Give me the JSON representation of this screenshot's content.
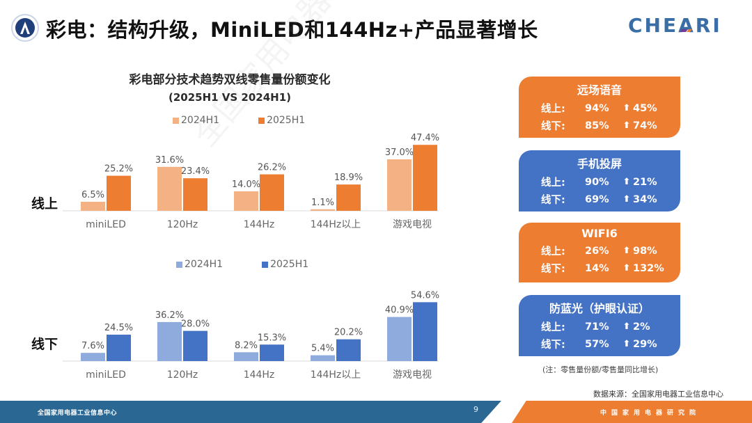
{
  "header": {
    "title": "彩电：结构升级，MiniLED和144Hz+产品显著增长",
    "brand": "CHEARI",
    "emblem": "organization-emblem"
  },
  "colors": {
    "orange_light": "#f4b183",
    "orange_dark": "#ed7d31",
    "blue_light": "#8faadc",
    "blue_dark": "#4472c4",
    "footer_blue": "#2a6793",
    "footer_orange": "#ed7d31"
  },
  "chart_data": [
    {
      "type": "bar",
      "title": "彩电部分技术趋势双线零售量份额变化",
      "subtitle": "(2025H1 VS 2024H1)",
      "row_label": "线上",
      "categories": [
        "miniLED",
        "120Hz",
        "144Hz",
        "144Hz以上",
        "游戏电视"
      ],
      "series": [
        {
          "name": "2024H1",
          "values": [
            6.5,
            31.6,
            14.0,
            1.1,
            37.0
          ],
          "labels": [
            "6.5%",
            "31.6%",
            "14.0%",
            "1.1%",
            "37.0%"
          ]
        },
        {
          "name": "2025H1",
          "values": [
            25.2,
            23.4,
            26.2,
            18.9,
            47.4
          ],
          "labels": [
            "25.2%",
            "23.4%",
            "26.2%",
            "18.9%",
            "47.4%"
          ]
        }
      ],
      "xlabel": "",
      "ylabel": "",
      "ylim": [
        0,
        60
      ],
      "grid": false,
      "legend": "top-center"
    },
    {
      "type": "bar",
      "row_label": "线下",
      "categories": [
        "miniLED",
        "120Hz",
        "144Hz",
        "144Hz以上",
        "游戏电视"
      ],
      "series": [
        {
          "name": "2024H1",
          "values": [
            7.6,
            36.2,
            8.2,
            5.4,
            40.9
          ],
          "labels": [
            "7.6%",
            "36.2%",
            "8.2%",
            "5.4%",
            "40.9%"
          ]
        },
        {
          "name": "2025H1",
          "values": [
            24.5,
            28.0,
            15.3,
            20.2,
            54.6
          ],
          "labels": [
            "24.5%",
            "28.0%",
            "15.3%",
            "20.2%",
            "54.6%"
          ]
        }
      ],
      "xlabel": "",
      "ylabel": "",
      "ylim": [
        0,
        60
      ],
      "grid": false,
      "legend": "top-center"
    }
  ],
  "cards": [
    {
      "title": "远场语音",
      "theme": "orange",
      "rows": [
        {
          "label": "线上:",
          "share": "94%",
          "arrow": "up-arrow",
          "growth": "45%"
        },
        {
          "label": "线下:",
          "share": "85%",
          "arrow": "up-arrow",
          "growth": "74%"
        }
      ]
    },
    {
      "title": "手机投屏",
      "theme": "blue",
      "rows": [
        {
          "label": "线上:",
          "share": "90%",
          "arrow": "up-arrow",
          "growth": "21%"
        },
        {
          "label": "线下:",
          "share": "69%",
          "arrow": "up-arrow",
          "growth": "34%"
        }
      ]
    },
    {
      "title": "WIFI6",
      "theme": "orange",
      "rows": [
        {
          "label": "线上:",
          "share": "26%",
          "arrow": "up-arrow",
          "growth": "98%"
        },
        {
          "label": "线下:",
          "share": "14%",
          "arrow": "up-arrow",
          "growth": "132%"
        }
      ]
    },
    {
      "title": "防蓝光（护眼认证）",
      "theme": "blue",
      "rows": [
        {
          "label": "线上:",
          "share": "71%",
          "arrow": "up-arrow",
          "growth": "2%"
        },
        {
          "label": "线下:",
          "share": "57%",
          "arrow": "up-arrow",
          "growth": "29%"
        }
      ]
    }
  ],
  "note": "(注：零售量份额/零售量同比增长)",
  "source": "数据来源：全国家用电器工业信息中心",
  "footer": {
    "left_text": "全国家用电器工业信息中心",
    "page_number": "9",
    "right_text": "中国家用电器研究院"
  },
  "watermark": "全国家用电器工业信息中心"
}
